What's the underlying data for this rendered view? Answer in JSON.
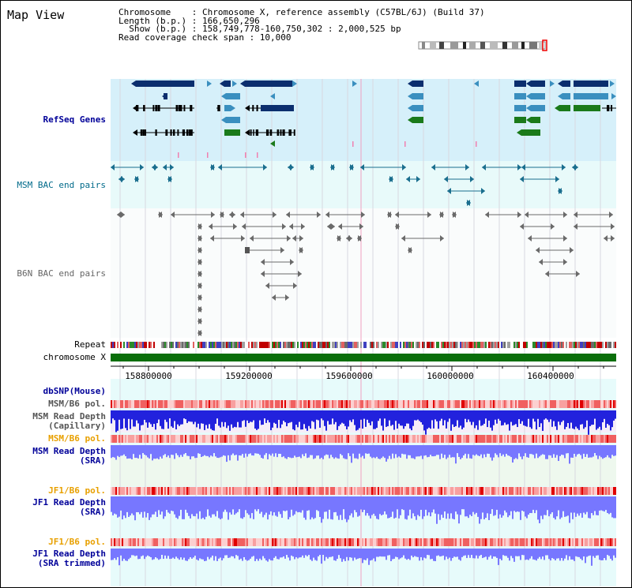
{
  "header": {
    "title": "Map View",
    "info_lines": [
      "Chromosome    : Chromosome X, reference assembly (C57BL/6J) (Build 37)",
      "Length (b.p.) : 166,650,296",
      "  Show (b.p.) : 158,749,778-160,750,302 : 2,000,525 bp",
      "Read coverage check span : 10,000"
    ]
  },
  "tracks": {
    "refseq": "RefSeq Genes",
    "msm_bac": "MSM BAC end pairs",
    "b6n_bac": "B6N BAC end pairs",
    "repeat": "Repeat",
    "chromosome": "chromosome X",
    "dbsnp": "dbSNP(Mouse)",
    "msm_b6_pol_1": "MSM/B6 pol.",
    "msm_depth_cap_1": "MSM Read Depth",
    "msm_depth_cap_2": "(Capillary)",
    "msm_b6_pol_2": "MSM/B6 pol.",
    "msm_depth_sra_1": "MSM Read Depth",
    "msm_depth_sra_2": "(SRA)",
    "jf1_b6_pol_1": "JF1/B6 pol.",
    "jf1_depth_sra_1": "JF1 Read Depth",
    "jf1_depth_sra_2": "(SRA)",
    "jf1_b6_pol_2": "JF1/B6 pol.",
    "jf1_depth_trim_1": "JF1 Read Depth",
    "jf1_depth_trim_2": "(SRA trimmed)"
  },
  "axis": {
    "ticks": [
      "158800000",
      "159200000",
      "159600000",
      "160000000",
      "160400000"
    ]
  },
  "colors": {
    "refseq_bg": "#d6f0fa",
    "bac_bg": "#e8fafa",
    "gene_dark": "#0b2e6e",
    "gene_mid": "#3a8fbf",
    "gene_green": "#1a7a1a",
    "msm_bac": "#1a6e8e",
    "b6n_bac": "#6a6a6a",
    "chrom": "#0a6e0a",
    "depth_blue": "#2222dd",
    "depth_lblue": "#7777ff",
    "navy_label": "#000099",
    "teal_label": "#006a8a",
    "orange_label": "#e8a000"
  }
}
